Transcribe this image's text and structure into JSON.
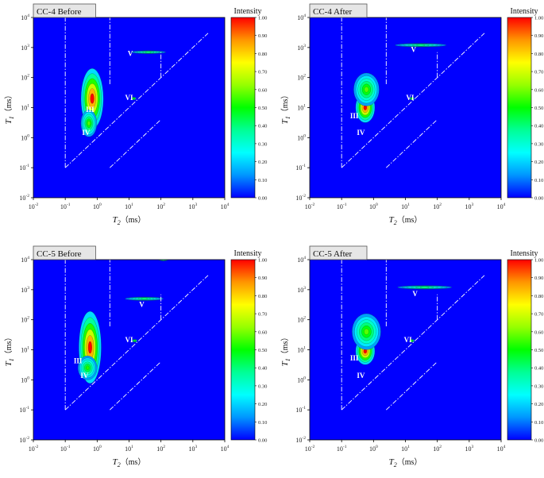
{
  "figure": {
    "panel_titles": [
      "CC-4 Before",
      "CC-4 After",
      "CC-5 Before",
      "CC-5 After"
    ]
  },
  "colorbar": {
    "title": "Intensity",
    "ticks": [
      "0.00",
      "0.10",
      "0.20",
      "0.30",
      "0.40",
      "0.50",
      "0.60",
      "0.70",
      "0.80",
      "0.90",
      "1.00"
    ],
    "colors": [
      "#0000ff",
      "#0096ff",
      "#00ffff",
      "#00ff96",
      "#00ff00",
      "#96ff00",
      "#ffff00",
      "#ff9600",
      "#ff0000"
    ]
  },
  "chart_data": [
    {
      "type": "heatmap",
      "title": "CC-4 Before",
      "xlabel_main": "T",
      "xlabel_sub": "2",
      "xlabel_unit": "（ms）",
      "ylabel_main": "T",
      "ylabel_sub": "1",
      "ylabel_unit": "（ms）",
      "x_scale": "log",
      "y_scale": "log",
      "xlim": [
        0.01,
        10000
      ],
      "ylim": [
        0.01,
        10000
      ],
      "x_ticks": [
        {
          "base": "10",
          "exp": "-2"
        },
        {
          "base": "10",
          "exp": "-1"
        },
        {
          "base": "10",
          "exp": "0"
        },
        {
          "base": "10",
          "exp": "1"
        },
        {
          "base": "10",
          "exp": "2"
        },
        {
          "base": "10",
          "exp": "3"
        },
        {
          "base": "10",
          "exp": "4"
        }
      ],
      "y_ticks": [
        {
          "base": "10",
          "exp": "-2"
        },
        {
          "base": "10",
          "exp": "-1"
        },
        {
          "base": "10",
          "exp": "0"
        },
        {
          "base": "10",
          "exp": "1"
        },
        {
          "base": "10",
          "exp": "2"
        },
        {
          "base": "10",
          "exp": "3"
        },
        {
          "base": "10",
          "exp": "4"
        }
      ],
      "intensity_range": [
        0,
        1
      ],
      "background_intensity": 0.0,
      "regions": [
        {
          "label": "III",
          "t2": 0.6,
          "t1": 8.0
        },
        {
          "label": "IV",
          "t2": 0.45,
          "t1": 1.4
        },
        {
          "label": "V",
          "t2": 11.0,
          "t1": 600
        },
        {
          "label": "VI",
          "t2": 10.0,
          "t1": 20.0
        }
      ],
      "peaks": [
        {
          "t2": 0.7,
          "t1": 20.0,
          "width": 0.35,
          "height": 1.0,
          "intensity": 1.0
        },
        {
          "t2": 0.55,
          "t1": 3.0,
          "width": 0.25,
          "height": 0.45,
          "intensity": 0.55
        },
        {
          "t2": 14.0,
          "t1": 20.0,
          "width": 0.08,
          "height": 0.05,
          "intensity": 0.45
        },
        {
          "t2": 40.0,
          "t1": 700.0,
          "width": 0.55,
          "height": 0.05,
          "intensity": 0.35
        }
      ]
    },
    {
      "type": "heatmap",
      "title": "CC-4 After",
      "xlabel_main": "T",
      "xlabel_sub": "2",
      "xlabel_unit": "（ms）",
      "ylabel_main": "T",
      "ylabel_sub": "1",
      "ylabel_unit": "（ms）",
      "x_scale": "log",
      "y_scale": "log",
      "xlim": [
        0.01,
        10000
      ],
      "ylim": [
        0.01,
        10000
      ],
      "x_ticks": [
        {
          "base": "10",
          "exp": "-2"
        },
        {
          "base": "10",
          "exp": "-1"
        },
        {
          "base": "10",
          "exp": "0"
        },
        {
          "base": "10",
          "exp": "1"
        },
        {
          "base": "10",
          "exp": "2"
        },
        {
          "base": "10",
          "exp": "3"
        },
        {
          "base": "10",
          "exp": "4"
        }
      ],
      "y_ticks": [
        {
          "base": "10",
          "exp": "-2"
        },
        {
          "base": "10",
          "exp": "-1"
        },
        {
          "base": "10",
          "exp": "0"
        },
        {
          "base": "10",
          "exp": "1"
        },
        {
          "base": "10",
          "exp": "2"
        },
        {
          "base": "10",
          "exp": "3"
        },
        {
          "base": "10",
          "exp": "4"
        }
      ],
      "intensity_range": [
        0,
        1
      ],
      "background_intensity": 0.0,
      "regions": [
        {
          "label": "III",
          "t2": 0.25,
          "t1": 5.0
        },
        {
          "label": "IV",
          "t2": 0.4,
          "t1": 1.4
        },
        {
          "label": "V",
          "t2": 18.0,
          "t1": 800
        },
        {
          "label": "VI",
          "t2": 14.0,
          "t1": 20.0
        }
      ],
      "peaks": [
        {
          "t2": 0.55,
          "t1": 10.0,
          "width": 0.3,
          "height": 0.5,
          "intensity": 1.0
        },
        {
          "t2": 0.6,
          "t1": 40.0,
          "width": 0.4,
          "height": 0.55,
          "intensity": 0.55
        },
        {
          "t2": 16.0,
          "t1": 20.0,
          "width": 0.08,
          "height": 0.05,
          "intensity": 0.45
        },
        {
          "t2": 30.0,
          "t1": 1200.0,
          "width": 0.8,
          "height": 0.06,
          "intensity": 0.35
        }
      ]
    },
    {
      "type": "heatmap",
      "title": "CC-5 Before",
      "xlabel_main": "T",
      "xlabel_sub": "2",
      "xlabel_unit": "（ms）",
      "ylabel_main": "T",
      "ylabel_sub": "1",
      "ylabel_unit": "（ms）",
      "x_scale": "log",
      "y_scale": "log",
      "xlim": [
        0.01,
        10000
      ],
      "ylim": [
        0.01,
        10000
      ],
      "x_ticks": [
        {
          "base": "10",
          "exp": "-2"
        },
        {
          "base": "10",
          "exp": "-1"
        },
        {
          "base": "10",
          "exp": "0"
        },
        {
          "base": "10",
          "exp": "1"
        },
        {
          "base": "10",
          "exp": "2"
        },
        {
          "base": "10",
          "exp": "3"
        },
        {
          "base": "10",
          "exp": "4"
        }
      ],
      "y_ticks": [
        {
          "base": "10",
          "exp": "-2"
        },
        {
          "base": "10",
          "exp": "-1"
        },
        {
          "base": "10",
          "exp": "0"
        },
        {
          "base": "10",
          "exp": "1"
        },
        {
          "base": "10",
          "exp": "2"
        },
        {
          "base": "10",
          "exp": "3"
        },
        {
          "base": "10",
          "exp": "4"
        }
      ],
      "intensity_range": [
        0,
        1
      ],
      "background_intensity": 0.0,
      "regions": [
        {
          "label": "III",
          "t2": 0.25,
          "t1": 4.0
        },
        {
          "label": "IV",
          "t2": 0.4,
          "t1": 1.3
        },
        {
          "label": "V",
          "t2": 25.0,
          "t1": 300
        },
        {
          "label": "VI",
          "t2": 10.0,
          "t1": 20.0
        }
      ],
      "peaks": [
        {
          "t2": 0.6,
          "t1": 12.0,
          "width": 0.35,
          "height": 1.2,
          "intensity": 1.0
        },
        {
          "t2": 0.5,
          "t1": 2.5,
          "width": 0.3,
          "height": 0.4,
          "intensity": 0.5
        },
        {
          "t2": 15.0,
          "t1": 20.0,
          "width": 0.08,
          "height": 0.05,
          "intensity": 0.45
        },
        {
          "t2": 30.0,
          "t1": 500.0,
          "width": 0.6,
          "height": 0.06,
          "intensity": 0.35
        },
        {
          "t2": 120.0,
          "t1": 10000.0,
          "width": 0.15,
          "height": 0.04,
          "intensity": 0.3
        }
      ]
    },
    {
      "type": "heatmap",
      "title": "CC-5 After",
      "xlabel_main": "T",
      "xlabel_sub": "2",
      "xlabel_unit": "（ms）",
      "ylabel_main": "T",
      "ylabel_sub": "1",
      "ylabel_unit": "（ms）",
      "x_scale": "log",
      "y_scale": "log",
      "xlim": [
        0.01,
        10000
      ],
      "ylim": [
        0.01,
        10000
      ],
      "x_ticks": [
        {
          "base": "10",
          "exp": "-2"
        },
        {
          "base": "10",
          "exp": "-1"
        },
        {
          "base": "10",
          "exp": "0"
        },
        {
          "base": "10",
          "exp": "1"
        },
        {
          "base": "10",
          "exp": "2"
        },
        {
          "base": "10",
          "exp": "3"
        },
        {
          "base": "10",
          "exp": "4"
        }
      ],
      "y_ticks": [
        {
          "base": "10",
          "exp": "-2"
        },
        {
          "base": "10",
          "exp": "-1"
        },
        {
          "base": "10",
          "exp": "0"
        },
        {
          "base": "10",
          "exp": "1"
        },
        {
          "base": "10",
          "exp": "2"
        },
        {
          "base": "10",
          "exp": "3"
        },
        {
          "base": "10",
          "exp": "4"
        }
      ],
      "intensity_range": [
        0,
        1
      ],
      "background_intensity": 0.0,
      "regions": [
        {
          "label": "III",
          "t2": 0.25,
          "t1": 5.0
        },
        {
          "label": "IV",
          "t2": 0.4,
          "t1": 1.3
        },
        {
          "label": "V",
          "t2": 20.0,
          "t1": 700
        },
        {
          "label": "VI",
          "t2": 12.0,
          "t1": 20.0
        }
      ],
      "peaks": [
        {
          "t2": 0.55,
          "t1": 9.0,
          "width": 0.3,
          "height": 0.45,
          "intensity": 1.0
        },
        {
          "t2": 0.6,
          "t1": 40.0,
          "width": 0.45,
          "height": 0.6,
          "intensity": 0.55
        },
        {
          "t2": 16.0,
          "t1": 20.0,
          "width": 0.08,
          "height": 0.05,
          "intensity": 0.45
        },
        {
          "t2": 40.0,
          "t1": 1200.0,
          "width": 0.85,
          "height": 0.06,
          "intensity": 0.35
        }
      ]
    }
  ]
}
